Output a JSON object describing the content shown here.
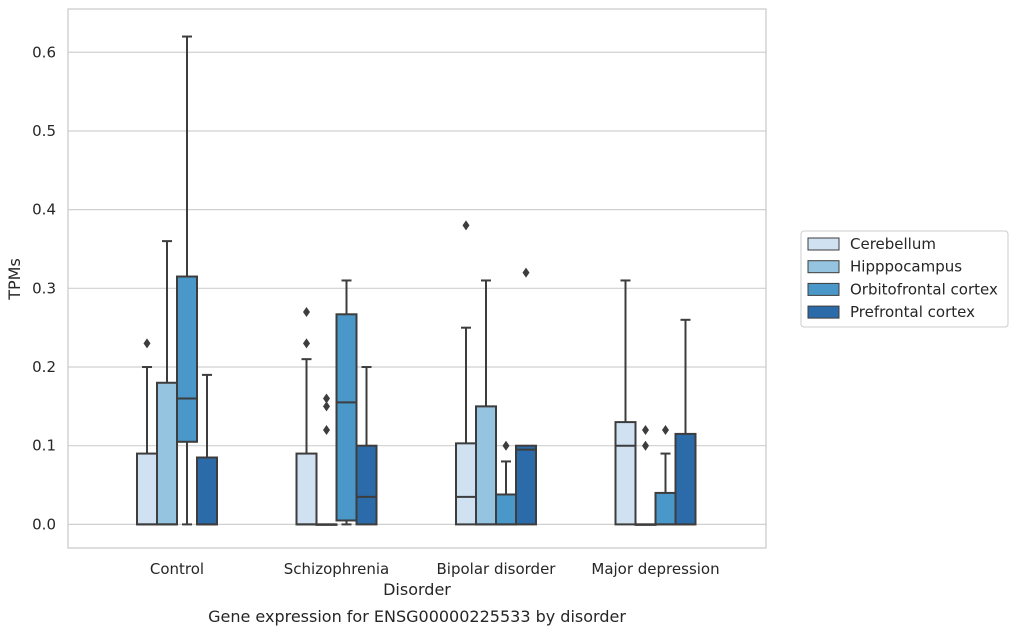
{
  "chart_data": {
    "type": "box",
    "caption": "Gene expression for ENSG00000225533 by disorder",
    "xlabel": "Disorder",
    "ylabel": "TPMs",
    "ylim": [
      -0.03,
      0.655
    ],
    "yticks": [
      0.0,
      0.1,
      0.2,
      0.3,
      0.4,
      0.5,
      0.6
    ],
    "ytick_labels": [
      "0.0",
      "0.1",
      "0.2",
      "0.3",
      "0.4",
      "0.5",
      "0.6"
    ],
    "grid": "horizontal",
    "legend_position": "right",
    "categories": [
      "Control",
      "Schizophrenia",
      "Bipolar disorder",
      "Major depression"
    ],
    "series": [
      {
        "name": "Cerebellum",
        "color": "#d0e1f2",
        "boxes": [
          {
            "q1": 0.0,
            "median": 0.0,
            "q3": 0.09,
            "whisker_low": 0.0,
            "whisker_high": 0.2,
            "outliers": [
              0.23
            ]
          },
          {
            "q1": 0.0,
            "median": 0.0,
            "q3": 0.09,
            "whisker_low": 0.0,
            "whisker_high": 0.21,
            "outliers": [
              0.23,
              0.27
            ]
          },
          {
            "q1": 0.0,
            "median": 0.035,
            "q3": 0.103,
            "whisker_low": 0.0,
            "whisker_high": 0.25,
            "outliers": [
              0.38
            ]
          },
          {
            "q1": 0.0,
            "median": 0.1,
            "q3": 0.13,
            "whisker_low": 0.0,
            "whisker_high": 0.31,
            "outliers": []
          }
        ]
      },
      {
        "name": "Hipppocampus",
        "color": "#94c4df",
        "boxes": [
          {
            "q1": 0.0,
            "median": 0.0,
            "q3": 0.18,
            "whisker_low": 0.0,
            "whisker_high": 0.36,
            "outliers": []
          },
          {
            "q1": 0.0,
            "median": 0.0,
            "q3": 0.0,
            "whisker_low": 0.0,
            "whisker_high": 0.0,
            "outliers": [
              0.12,
              0.15,
              0.16
            ]
          },
          {
            "q1": 0.0,
            "median": 0.0,
            "q3": 0.15,
            "whisker_low": 0.0,
            "whisker_high": 0.31,
            "outliers": []
          },
          {
            "q1": 0.0,
            "median": 0.0,
            "q3": 0.0,
            "whisker_low": 0.0,
            "whisker_high": 0.0,
            "outliers": [
              0.1,
              0.12
            ]
          }
        ]
      },
      {
        "name": "Orbitofrontal cortex",
        "color": "#4a98c9",
        "boxes": [
          {
            "q1": 0.105,
            "median": 0.16,
            "q3": 0.315,
            "whisker_low": 0.0,
            "whisker_high": 0.62,
            "outliers": []
          },
          {
            "q1": 0.005,
            "median": 0.155,
            "q3": 0.267,
            "whisker_low": 0.0,
            "whisker_high": 0.31,
            "outliers": []
          },
          {
            "q1": 0.0,
            "median": 0.0,
            "q3": 0.038,
            "whisker_low": 0.0,
            "whisker_high": 0.08,
            "outliers": [
              0.1
            ]
          },
          {
            "q1": 0.0,
            "median": 0.0,
            "q3": 0.04,
            "whisker_low": 0.0,
            "whisker_high": 0.09,
            "outliers": [
              0.12
            ]
          }
        ]
      },
      {
        "name": "Prefrontal cortex",
        "color": "#2b6ba9",
        "boxes": [
          {
            "q1": 0.0,
            "median": 0.0,
            "q3": 0.085,
            "whisker_low": 0.0,
            "whisker_high": 0.19,
            "outliers": []
          },
          {
            "q1": 0.0,
            "median": 0.035,
            "q3": 0.1,
            "whisker_low": 0.0,
            "whisker_high": 0.2,
            "outliers": []
          },
          {
            "q1": 0.0,
            "median": 0.095,
            "q3": 0.1,
            "whisker_low": 0.0,
            "whisker_high": 0.1,
            "outliers": [
              0.32
            ]
          },
          {
            "q1": 0.0,
            "median": 0.0,
            "q3": 0.115,
            "whisker_low": 0.0,
            "whisker_high": 0.26,
            "outliers": []
          }
        ]
      }
    ]
  }
}
